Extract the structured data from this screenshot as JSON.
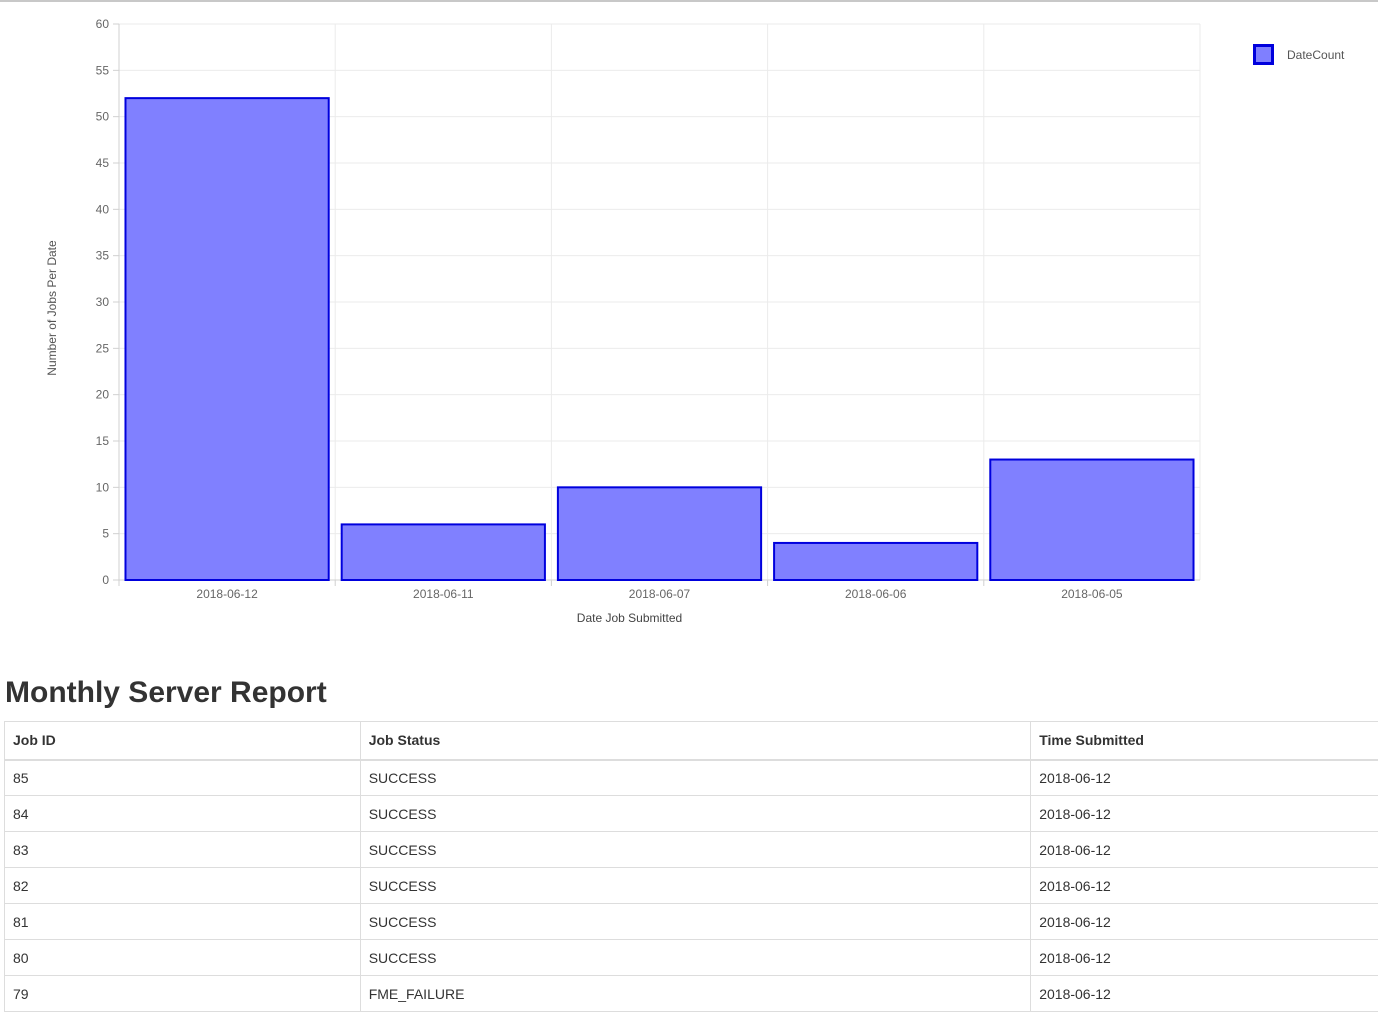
{
  "chart_data": {
    "type": "bar",
    "categories": [
      "2018-06-12",
      "2018-06-11",
      "2018-06-07",
      "2018-06-06",
      "2018-06-05"
    ],
    "series": [
      {
        "name": "DateCount",
        "values": [
          52,
          6,
          10,
          4,
          13
        ]
      }
    ],
    "xlabel": "Date Job Submitted",
    "ylabel": "Number of Jobs Per Date",
    "ylim": [
      0,
      60
    ],
    "yticks": [
      0,
      5,
      10,
      15,
      20,
      25,
      30,
      35,
      40,
      45,
      50,
      55,
      60
    ],
    "grid": true,
    "legend_position": "top-right",
    "colors": {
      "fill": "#8080ff",
      "stroke": "#0000dd"
    }
  },
  "report": {
    "title": "Monthly Server Report",
    "columns": [
      "Job ID",
      "Job Status",
      "Time Submitted"
    ],
    "rows": [
      [
        "85",
        "SUCCESS",
        "2018-06-12"
      ],
      [
        "84",
        "SUCCESS",
        "2018-06-12"
      ],
      [
        "83",
        "SUCCESS",
        "2018-06-12"
      ],
      [
        "82",
        "SUCCESS",
        "2018-06-12"
      ],
      [
        "81",
        "SUCCESS",
        "2018-06-12"
      ],
      [
        "80",
        "SUCCESS",
        "2018-06-12"
      ],
      [
        "79",
        "FME_FAILURE",
        "2018-06-12"
      ]
    ]
  }
}
